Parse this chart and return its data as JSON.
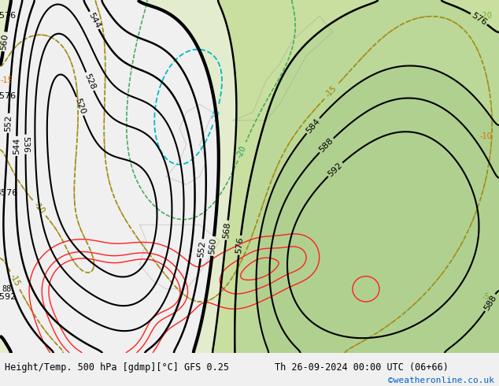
{
  "title_left": "Height/Temp. 500 hPa [gdmp][°C] GFS 0.25",
  "title_right": "Th 26-09-2024 00:00 UTC (06+66)",
  "credit": "©weatheronline.co.uk",
  "land_color": "#dcdcdc",
  "green_color": "#c8e0a0",
  "z500_color": "#000000",
  "temp_warm_color": "#e07000",
  "temp_cold_color": "#00b8c8",
  "temp_green_color": "#70a830",
  "rain_color": "#ff2020",
  "contour_levels_z500": [
    520,
    528,
    536,
    544,
    552,
    560,
    568,
    576,
    584,
    588,
    592
  ],
  "figsize": [
    6.34,
    4.9
  ],
  "dpi": 100
}
